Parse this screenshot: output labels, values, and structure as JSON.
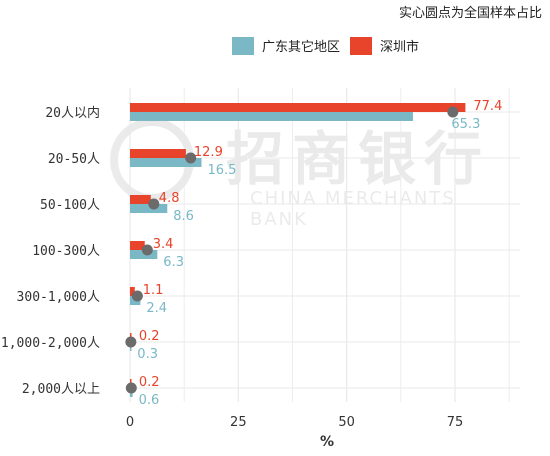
{
  "top_note": "实心圆点为全国样本占比",
  "watermark": {
    "cn": "招商银行",
    "en": "CHINA MERCHANTS BANK"
  },
  "colors": {
    "guangdong": "#7ab8c6",
    "shenzhen": "#e8432b",
    "dot": "#6b6b6b",
    "grid": "#e9e9e9",
    "axis_text": "#333333"
  },
  "legend": [
    {
      "label": "广东其它地区",
      "color": "#7ab8c6"
    },
    {
      "label": "深圳市",
      "color": "#e8432b"
    }
  ],
  "chart_data": {
    "type": "bar",
    "orientation": "horizontal",
    "categories": [
      "20人以内",
      "20-50人",
      "50-100人",
      "100-300人",
      "300-1,000人",
      "1,000-2,000人",
      "2,000人以上"
    ],
    "series": [
      {
        "name": "深圳市",
        "values": [
          77.4,
          12.9,
          4.8,
          3.4,
          1.1,
          0.2,
          0.2
        ]
      },
      {
        "name": "广东其它地区",
        "values": [
          65.3,
          16.5,
          8.6,
          6.3,
          2.4,
          0.3,
          0.6
        ]
      }
    ],
    "national_dots": [
      74.5,
      14.0,
      5.5,
      4.0,
      1.7,
      0.2,
      0.3
    ],
    "xlabel": "%",
    "ylabel": "",
    "xlim": [
      0,
      90
    ],
    "xticks": [
      0,
      25,
      50,
      75
    ],
    "grid": true
  }
}
